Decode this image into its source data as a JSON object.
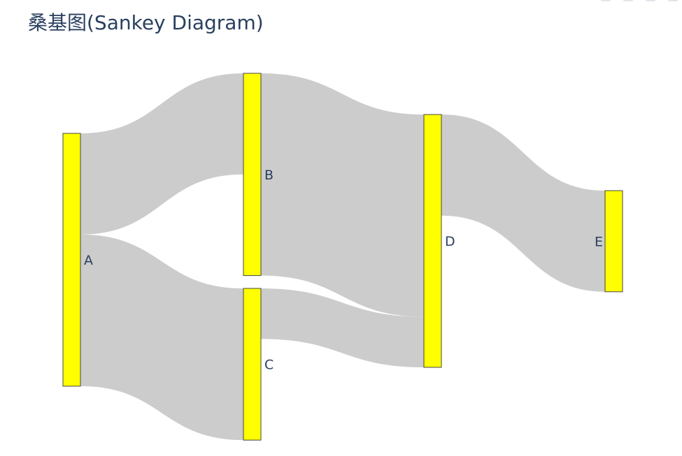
{
  "title": "桑基图(Sankey Diagram)",
  "chart_data": {
    "type": "sankey",
    "title": "桑基图(Sankey Diagram)",
    "nodes": [
      {
        "name": "A",
        "value": 10
      },
      {
        "name": "B",
        "value": 8
      },
      {
        "name": "C",
        "value": 6
      },
      {
        "name": "D",
        "value": 10
      },
      {
        "name": "E",
        "value": 4
      }
    ],
    "links": [
      {
        "source": "A",
        "target": "B",
        "value": 4
      },
      {
        "source": "A",
        "target": "C",
        "value": 6
      },
      {
        "source": "B",
        "target": "D",
        "value": 8
      },
      {
        "source": "C",
        "target": "D",
        "value": 2
      },
      {
        "source": "D",
        "target": "E",
        "value": 4
      }
    ],
    "node_color": "#ffff00",
    "node_border_color": "#444444",
    "link_color": "#cccccc",
    "label_color": "#2a3f5f"
  },
  "modebar": {
    "icons": [
      "camera-icon",
      "zoom-icon",
      "pan-icon",
      "reset-icon"
    ]
  }
}
